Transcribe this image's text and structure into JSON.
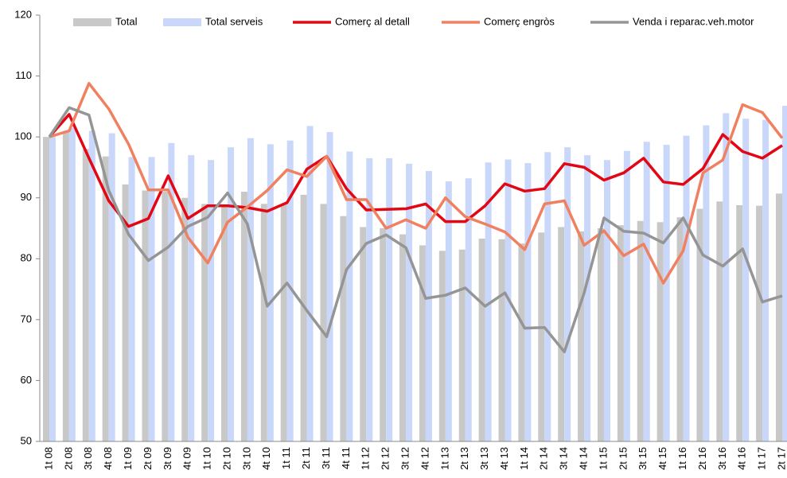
{
  "chart_data": {
    "type": "bar",
    "categories": [
      "1t 08",
      "2t 08",
      "3t 08",
      "4t 08",
      "1t 09",
      "2t 09",
      "3t 09",
      "4t 09",
      "1t 10",
      "2t 10",
      "3t 10",
      "4t 10",
      "1t 11",
      "2t 11",
      "3t 11",
      "4t 11",
      "1t 12",
      "2t 12",
      "3t 12",
      "4t 12",
      "1t 13",
      "2t 13",
      "3t 13",
      "4t 13",
      "1t 14",
      "2t 14",
      "3t 14",
      "4t 14",
      "1t 15",
      "2t 15",
      "3t 15",
      "4t 15",
      "1t 16",
      "2t 16",
      "3t 16",
      "4t 16",
      "1t 17",
      "2t 17"
    ],
    "series": [
      {
        "name": "Total",
        "type": "bar",
        "color": "#c8c8c8",
        "values": [
          100,
          101,
          98,
          96.8,
          92.2,
          91.2,
          91,
          90,
          89,
          88.5,
          91,
          89,
          89,
          90.5,
          89,
          87,
          85.2,
          85,
          84,
          82.2,
          81.3,
          81.5,
          83.3,
          83.2,
          82.5,
          84.3,
          85.2,
          84.5,
          85,
          85.5,
          86.2,
          86,
          86.8,
          88.2,
          89.4,
          88.8,
          88.7,
          90.7
        ]
      },
      {
        "name": "Total serveis",
        "type": "bar",
        "color": "#c9d7fa",
        "values": [
          100,
          101.5,
          101,
          100.6,
          96.7,
          96.7,
          99,
          97,
          96.2,
          98.3,
          99.8,
          98.8,
          99.4,
          101.8,
          100.8,
          97.6,
          96.5,
          96.5,
          95.6,
          94.4,
          92.7,
          93.2,
          95.8,
          96.3,
          95.7,
          97.5,
          98.3,
          97,
          96.2,
          97.7,
          99.2,
          98.7,
          100.2,
          101.9,
          103.9,
          103,
          102.8,
          105.1
        ]
      },
      {
        "name": "Comerç al detall",
        "type": "line",
        "color": "#e30613",
        "values": [
          100,
          103.7,
          96.5,
          89.5,
          85.3,
          86.6,
          93.6,
          86.6,
          88.7,
          88.7,
          88.4,
          87.8,
          89.2,
          94.7,
          96.8,
          91.5,
          88,
          88.1,
          88.2,
          89,
          86.1,
          86.1,
          88.7,
          92.3,
          91.1,
          91.5,
          95.6,
          95,
          92.9,
          94.1,
          96.5,
          92.6,
          92.2,
          94.8,
          100.4,
          97.6,
          96.5,
          98.6
        ]
      },
      {
        "name": "Comerç engròs",
        "type": "line",
        "color": "#f08060",
        "values": [
          100,
          101,
          108.8,
          104.6,
          98.8,
          91.3,
          91.3,
          83.5,
          79.3,
          86,
          88.5,
          91.2,
          94.6,
          93.5,
          96.8,
          89.7,
          89.7,
          85,
          86.4,
          85,
          90,
          86.9,
          85.7,
          84.4,
          81.5,
          89,
          89.5,
          82.2,
          84.6,
          80.5,
          82.4,
          76,
          81.3,
          94.1,
          96.2,
          105.3,
          104,
          99.8
        ]
      },
      {
        "name": "Venda i reparac.veh.motor",
        "type": "line",
        "color": "#959595",
        "values": [
          100,
          104.8,
          103.6,
          91.2,
          84,
          79.7,
          81.9,
          85.3,
          86.8,
          90.8,
          85.7,
          72.2,
          76,
          71.5,
          67.2,
          78.2,
          82.5,
          83.9,
          81.8,
          73.5,
          74,
          75.2,
          72.2,
          74.4,
          68.6,
          68.7,
          64.7,
          74.4,
          86.7,
          84.5,
          84.2,
          82.6,
          86.7,
          80.6,
          78.8,
          81.6,
          72.9,
          73.9
        ]
      }
    ],
    "ylim": [
      50,
      120
    ],
    "yticks": [
      50,
      60,
      70,
      80,
      90,
      100,
      110,
      120
    ],
    "grid": false,
    "legend": "top"
  }
}
